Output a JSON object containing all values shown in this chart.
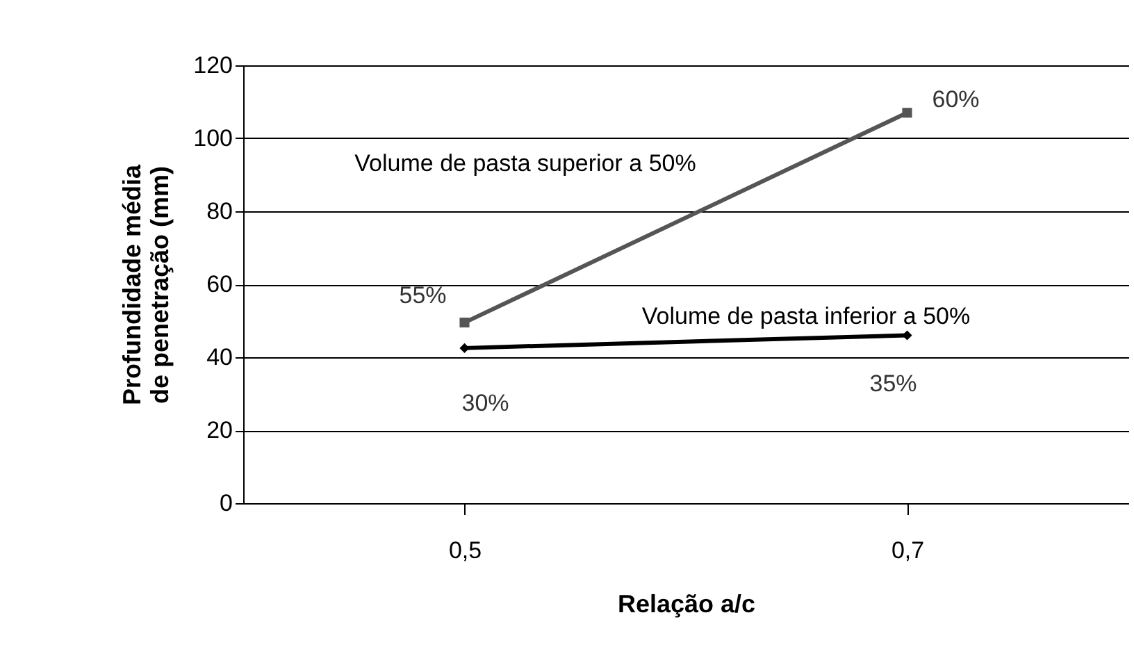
{
  "chart_data": {
    "type": "line",
    "xlabel": "Relação a/c",
    "ylabel": "Profundidade média de penetração (mm)",
    "categories": [
      "0,5",
      "0,7"
    ],
    "series": [
      {
        "name": "Volume de pasta superior a 50%",
        "color": "#555555",
        "marker": "square",
        "values": [
          49.5,
          107
        ]
      },
      {
        "name": "Volume de pasta inferior a 50%",
        "color": "#000000",
        "marker": "diamond",
        "values": [
          42.5,
          46
        ]
      }
    ],
    "ylim": [
      0,
      120
    ],
    "yticks": [
      0,
      20,
      40,
      60,
      80,
      100,
      120
    ],
    "grid": "y",
    "annotations": [
      {
        "text": "55%",
        "x": "0,5",
        "y": 49.5
      },
      {
        "text": "60%",
        "x": "0,7",
        "y": 107
      },
      {
        "text": "30%",
        "x": "0,5",
        "y": 42.5
      },
      {
        "text": "35%",
        "x": "0,7",
        "y": 46
      }
    ]
  }
}
